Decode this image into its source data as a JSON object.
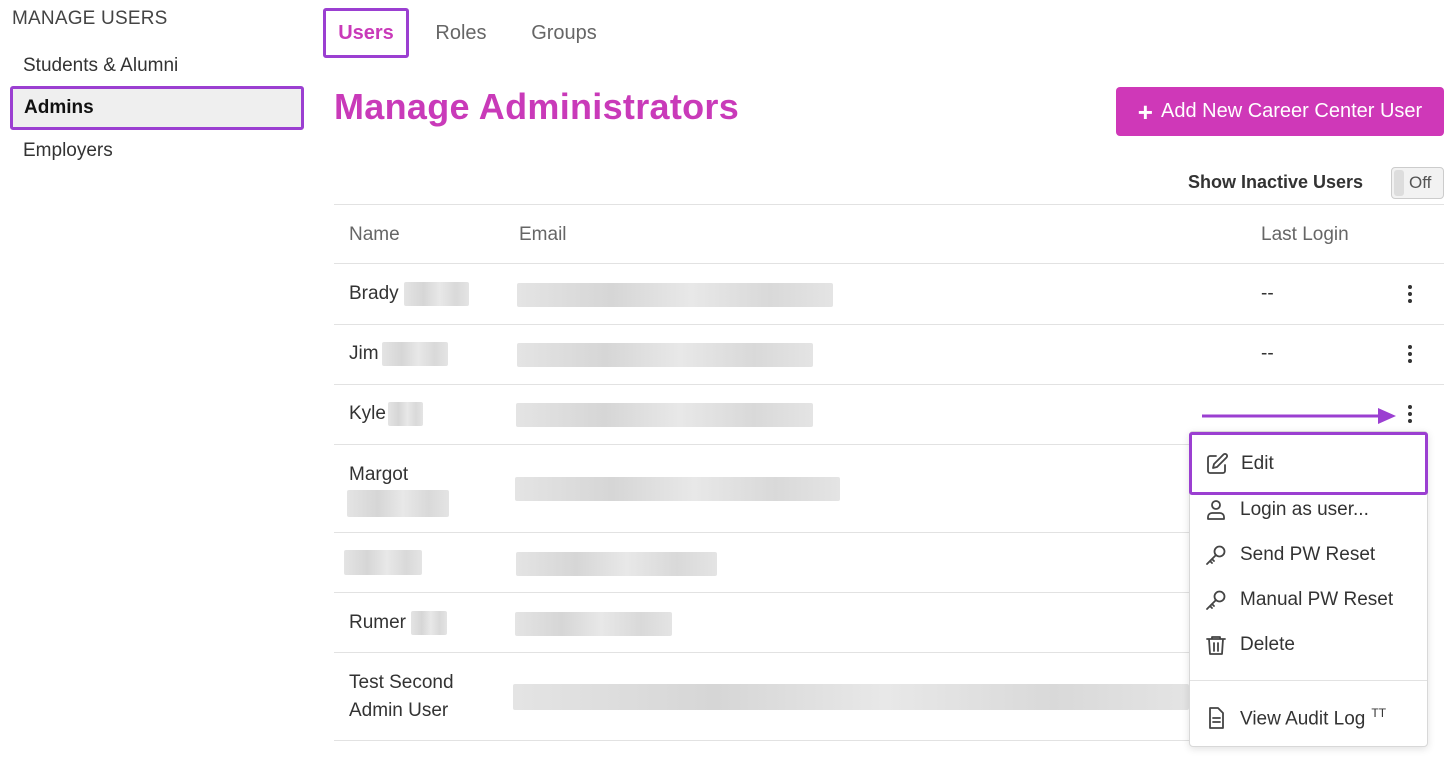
{
  "sidebar": {
    "title": "MANAGE USERS",
    "items": [
      {
        "label": "Students & Alumni"
      },
      {
        "label": "Admins"
      },
      {
        "label": "Employers"
      }
    ]
  },
  "tabs": [
    {
      "label": "Users"
    },
    {
      "label": "Roles"
    },
    {
      "label": "Groups"
    }
  ],
  "page": {
    "title": "Manage Administrators",
    "add_button": "Add New Career Center User",
    "show_inactive_label": "Show Inactive Users",
    "toggle_state": "Off"
  },
  "table": {
    "headers": [
      "Name",
      "Email",
      "Last Login"
    ],
    "rows": [
      {
        "name": "Brady",
        "last_login": "--"
      },
      {
        "name": "Jim",
        "last_login": "--"
      },
      {
        "name": "Kyle",
        "last_login": ""
      },
      {
        "name": "Margot",
        "last_login": ""
      },
      {
        "name": "",
        "last_login": ""
      },
      {
        "name": "Rumer",
        "last_login": ""
      },
      {
        "name": "Test Second",
        "name_line2": "Admin User",
        "last_login": ""
      }
    ]
  },
  "menu": {
    "items": [
      {
        "label": "Edit",
        "icon": "edit-icon"
      },
      {
        "label": "Login as user...",
        "icon": "user-icon"
      },
      {
        "label": "Send PW Reset",
        "icon": "key-icon"
      },
      {
        "label": "Manual PW Reset",
        "icon": "key-icon"
      },
      {
        "label": "Delete",
        "icon": "trash-icon"
      },
      {
        "label": "View Audit Log",
        "icon": "document-icon",
        "superscript": "TT"
      }
    ]
  },
  "colors": {
    "accent": "#c93ab9",
    "highlight_border": "#9b3fd1",
    "button": "#cf38b8"
  }
}
